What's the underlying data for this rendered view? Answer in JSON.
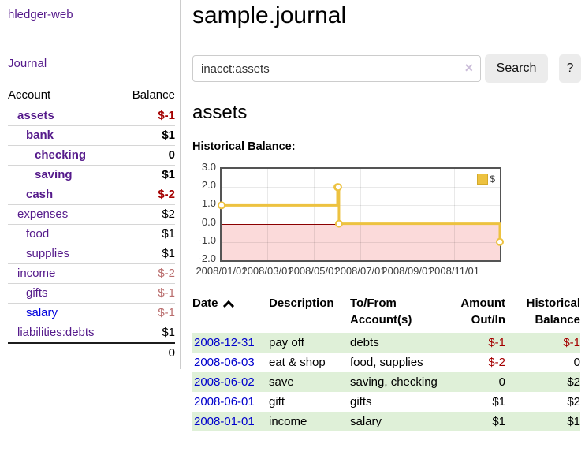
{
  "brand": "hledger-web",
  "nav": {
    "journal": "Journal"
  },
  "colors": {
    "accent_purple": "#551a8b",
    "link_blue": "#0000dd",
    "date_link_blue": "#0000cc",
    "negative_strong": "#a40000",
    "negative_muted": "#b96d6d",
    "row_green": "#dff0d8",
    "chart_series_yellow": "#edc240",
    "chart_negative_region": "#fbdada",
    "chart_zero_line": "#8b0000"
  },
  "sidebar": {
    "header": {
      "account": "Account",
      "balance": "Balance"
    },
    "accounts": [
      {
        "name": "assets",
        "balance": "$-1",
        "level": 1,
        "bold": true,
        "balance_class": "neg-strong"
      },
      {
        "name": "bank",
        "balance": "$1",
        "level": 2,
        "bold": true,
        "balance_class": ""
      },
      {
        "name": "checking",
        "balance": "0",
        "level": 3,
        "bold": true,
        "balance_class": ""
      },
      {
        "name": "saving",
        "balance": "$1",
        "level": 3,
        "bold": true,
        "balance_class": ""
      },
      {
        "name": "cash",
        "balance": "$-2",
        "level": 2,
        "bold": true,
        "balance_class": "neg-strong"
      },
      {
        "name": "expenses",
        "balance": "$2",
        "level": 1,
        "bold": false,
        "balance_class": ""
      },
      {
        "name": "food",
        "balance": "$1",
        "level": 2,
        "bold": false,
        "balance_class": ""
      },
      {
        "name": "supplies",
        "balance": "$1",
        "level": 2,
        "bold": false,
        "balance_class": ""
      },
      {
        "name": "income",
        "balance": "$-2",
        "level": 1,
        "bold": false,
        "balance_class": "neg-muted"
      },
      {
        "name": "gifts",
        "balance": "$-1",
        "level": 2,
        "bold": false,
        "balance_class": "neg-muted"
      },
      {
        "name": "salary",
        "balance": "$-1",
        "level": 2,
        "bold": false,
        "balance_class": "neg-muted",
        "name_color": "blue"
      },
      {
        "name": "liabilities:debts",
        "balance": "$1",
        "level": 1,
        "bold": false,
        "balance_class": ""
      }
    ],
    "total": "0"
  },
  "main": {
    "title": "sample.journal",
    "search": {
      "value": "inacct:assets",
      "clear_icon": "×",
      "button_label": "Search",
      "help_label": "?"
    },
    "account_heading": "assets",
    "chart_heading": "Historical Balance:"
  },
  "chart_data": {
    "type": "line",
    "step": true,
    "title": "Historical Balance",
    "x_range": [
      "2008-01-01",
      "2008-12-31"
    ],
    "ylim": [
      -2,
      3
    ],
    "yticks": [
      3.0,
      2.0,
      1.0,
      0.0,
      -1.0,
      -2.0
    ],
    "xticks": [
      {
        "label": "2008/01/01",
        "date": "2008-01-01"
      },
      {
        "label": "2008/03/01",
        "date": "2008-03-01"
      },
      {
        "label": "2008/05/01",
        "date": "2008-05-01"
      },
      {
        "label": "2008/07/01",
        "date": "2008-07-01"
      },
      {
        "label": "2008/09/01",
        "date": "2008-09-01"
      },
      {
        "label": "2008/11/01",
        "date": "2008-11-01"
      }
    ],
    "series": [
      {
        "name": "$",
        "color": "#edc240",
        "points": [
          {
            "x": "2008-01-01",
            "y": 1
          },
          {
            "x": "2008-06-01",
            "y": 2
          },
          {
            "x": "2008-06-02",
            "y": 2
          },
          {
            "x": "2008-06-03",
            "y": 0
          },
          {
            "x": "2008-12-31",
            "y": -1
          }
        ]
      }
    ],
    "legend": {
      "label": "$",
      "position": "top-right"
    },
    "grid": true,
    "negative_region_color": "#fbdada",
    "zero_line_color": "#8b0000"
  },
  "register": {
    "headers": [
      "Date",
      "Description",
      "To/From Account(s)",
      "Amount Out/In",
      "Historical Balance"
    ],
    "rows": [
      {
        "date": "2008-12-31",
        "description": "pay off",
        "accounts": "debts",
        "amount": "$-1",
        "amount_negative": true,
        "balance": "$-1",
        "balance_negative": true
      },
      {
        "date": "2008-06-03",
        "description": "eat & shop",
        "accounts": "food, supplies",
        "amount": "$-2",
        "amount_negative": true,
        "balance": "0",
        "balance_negative": false
      },
      {
        "date": "2008-06-02",
        "description": "save",
        "accounts": "saving, checking",
        "amount": "0",
        "amount_negative": false,
        "balance": "$2",
        "balance_negative": false
      },
      {
        "date": "2008-06-01",
        "description": "gift",
        "accounts": "gifts",
        "amount": "$1",
        "amount_negative": false,
        "balance": "$2",
        "balance_negative": false
      },
      {
        "date": "2008-01-01",
        "description": "income",
        "accounts": "salary",
        "amount": "$1",
        "amount_negative": false,
        "balance": "$1",
        "balance_negative": false
      }
    ]
  }
}
